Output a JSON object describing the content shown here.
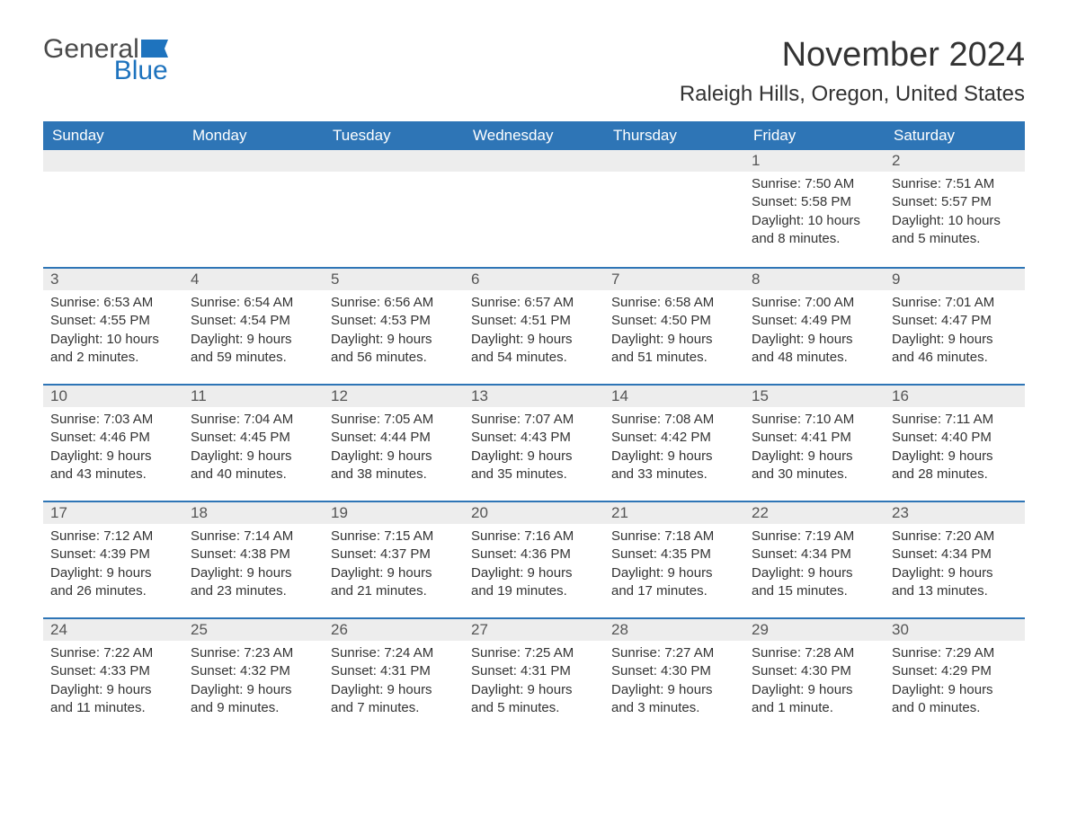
{
  "brand": {
    "part1": "General",
    "part2": "Blue",
    "flag_color": "#1e73be",
    "text_color_1": "#4a4a4a",
    "text_color_2": "#1e73be"
  },
  "title": "November 2024",
  "location": "Raleigh Hills, Oregon, United States",
  "colors": {
    "header_bg": "#2e75b6",
    "header_text": "#ffffff",
    "week_border": "#2e75b6",
    "daynum_bg": "#ededed",
    "daynum_text": "#555555",
    "body_text": "#333333",
    "page_bg": "#ffffff"
  },
  "day_headers": [
    "Sunday",
    "Monday",
    "Tuesday",
    "Wednesday",
    "Thursday",
    "Friday",
    "Saturday"
  ],
  "weeks": [
    [
      {
        "day": "",
        "sunrise": "",
        "sunset": "",
        "daylight": ""
      },
      {
        "day": "",
        "sunrise": "",
        "sunset": "",
        "daylight": ""
      },
      {
        "day": "",
        "sunrise": "",
        "sunset": "",
        "daylight": ""
      },
      {
        "day": "",
        "sunrise": "",
        "sunset": "",
        "daylight": ""
      },
      {
        "day": "",
        "sunrise": "",
        "sunset": "",
        "daylight": ""
      },
      {
        "day": "1",
        "sunrise": "Sunrise: 7:50 AM",
        "sunset": "Sunset: 5:58 PM",
        "daylight": "Daylight: 10 hours and 8 minutes."
      },
      {
        "day": "2",
        "sunrise": "Sunrise: 7:51 AM",
        "sunset": "Sunset: 5:57 PM",
        "daylight": "Daylight: 10 hours and 5 minutes."
      }
    ],
    [
      {
        "day": "3",
        "sunrise": "Sunrise: 6:53 AM",
        "sunset": "Sunset: 4:55 PM",
        "daylight": "Daylight: 10 hours and 2 minutes."
      },
      {
        "day": "4",
        "sunrise": "Sunrise: 6:54 AM",
        "sunset": "Sunset: 4:54 PM",
        "daylight": "Daylight: 9 hours and 59 minutes."
      },
      {
        "day": "5",
        "sunrise": "Sunrise: 6:56 AM",
        "sunset": "Sunset: 4:53 PM",
        "daylight": "Daylight: 9 hours and 56 minutes."
      },
      {
        "day": "6",
        "sunrise": "Sunrise: 6:57 AM",
        "sunset": "Sunset: 4:51 PM",
        "daylight": "Daylight: 9 hours and 54 minutes."
      },
      {
        "day": "7",
        "sunrise": "Sunrise: 6:58 AM",
        "sunset": "Sunset: 4:50 PM",
        "daylight": "Daylight: 9 hours and 51 minutes."
      },
      {
        "day": "8",
        "sunrise": "Sunrise: 7:00 AM",
        "sunset": "Sunset: 4:49 PM",
        "daylight": "Daylight: 9 hours and 48 minutes."
      },
      {
        "day": "9",
        "sunrise": "Sunrise: 7:01 AM",
        "sunset": "Sunset: 4:47 PM",
        "daylight": "Daylight: 9 hours and 46 minutes."
      }
    ],
    [
      {
        "day": "10",
        "sunrise": "Sunrise: 7:03 AM",
        "sunset": "Sunset: 4:46 PM",
        "daylight": "Daylight: 9 hours and 43 minutes."
      },
      {
        "day": "11",
        "sunrise": "Sunrise: 7:04 AM",
        "sunset": "Sunset: 4:45 PM",
        "daylight": "Daylight: 9 hours and 40 minutes."
      },
      {
        "day": "12",
        "sunrise": "Sunrise: 7:05 AM",
        "sunset": "Sunset: 4:44 PM",
        "daylight": "Daylight: 9 hours and 38 minutes."
      },
      {
        "day": "13",
        "sunrise": "Sunrise: 7:07 AM",
        "sunset": "Sunset: 4:43 PM",
        "daylight": "Daylight: 9 hours and 35 minutes."
      },
      {
        "day": "14",
        "sunrise": "Sunrise: 7:08 AM",
        "sunset": "Sunset: 4:42 PM",
        "daylight": "Daylight: 9 hours and 33 minutes."
      },
      {
        "day": "15",
        "sunrise": "Sunrise: 7:10 AM",
        "sunset": "Sunset: 4:41 PM",
        "daylight": "Daylight: 9 hours and 30 minutes."
      },
      {
        "day": "16",
        "sunrise": "Sunrise: 7:11 AM",
        "sunset": "Sunset: 4:40 PM",
        "daylight": "Daylight: 9 hours and 28 minutes."
      }
    ],
    [
      {
        "day": "17",
        "sunrise": "Sunrise: 7:12 AM",
        "sunset": "Sunset: 4:39 PM",
        "daylight": "Daylight: 9 hours and 26 minutes."
      },
      {
        "day": "18",
        "sunrise": "Sunrise: 7:14 AM",
        "sunset": "Sunset: 4:38 PM",
        "daylight": "Daylight: 9 hours and 23 minutes."
      },
      {
        "day": "19",
        "sunrise": "Sunrise: 7:15 AM",
        "sunset": "Sunset: 4:37 PM",
        "daylight": "Daylight: 9 hours and 21 minutes."
      },
      {
        "day": "20",
        "sunrise": "Sunrise: 7:16 AM",
        "sunset": "Sunset: 4:36 PM",
        "daylight": "Daylight: 9 hours and 19 minutes."
      },
      {
        "day": "21",
        "sunrise": "Sunrise: 7:18 AM",
        "sunset": "Sunset: 4:35 PM",
        "daylight": "Daylight: 9 hours and 17 minutes."
      },
      {
        "day": "22",
        "sunrise": "Sunrise: 7:19 AM",
        "sunset": "Sunset: 4:34 PM",
        "daylight": "Daylight: 9 hours and 15 minutes."
      },
      {
        "day": "23",
        "sunrise": "Sunrise: 7:20 AM",
        "sunset": "Sunset: 4:34 PM",
        "daylight": "Daylight: 9 hours and 13 minutes."
      }
    ],
    [
      {
        "day": "24",
        "sunrise": "Sunrise: 7:22 AM",
        "sunset": "Sunset: 4:33 PM",
        "daylight": "Daylight: 9 hours and 11 minutes."
      },
      {
        "day": "25",
        "sunrise": "Sunrise: 7:23 AM",
        "sunset": "Sunset: 4:32 PM",
        "daylight": "Daylight: 9 hours and 9 minutes."
      },
      {
        "day": "26",
        "sunrise": "Sunrise: 7:24 AM",
        "sunset": "Sunset: 4:31 PM",
        "daylight": "Daylight: 9 hours and 7 minutes."
      },
      {
        "day": "27",
        "sunrise": "Sunrise: 7:25 AM",
        "sunset": "Sunset: 4:31 PM",
        "daylight": "Daylight: 9 hours and 5 minutes."
      },
      {
        "day": "28",
        "sunrise": "Sunrise: 7:27 AM",
        "sunset": "Sunset: 4:30 PM",
        "daylight": "Daylight: 9 hours and 3 minutes."
      },
      {
        "day": "29",
        "sunrise": "Sunrise: 7:28 AM",
        "sunset": "Sunset: 4:30 PM",
        "daylight": "Daylight: 9 hours and 1 minute."
      },
      {
        "day": "30",
        "sunrise": "Sunrise: 7:29 AM",
        "sunset": "Sunset: 4:29 PM",
        "daylight": "Daylight: 9 hours and 0 minutes."
      }
    ]
  ]
}
